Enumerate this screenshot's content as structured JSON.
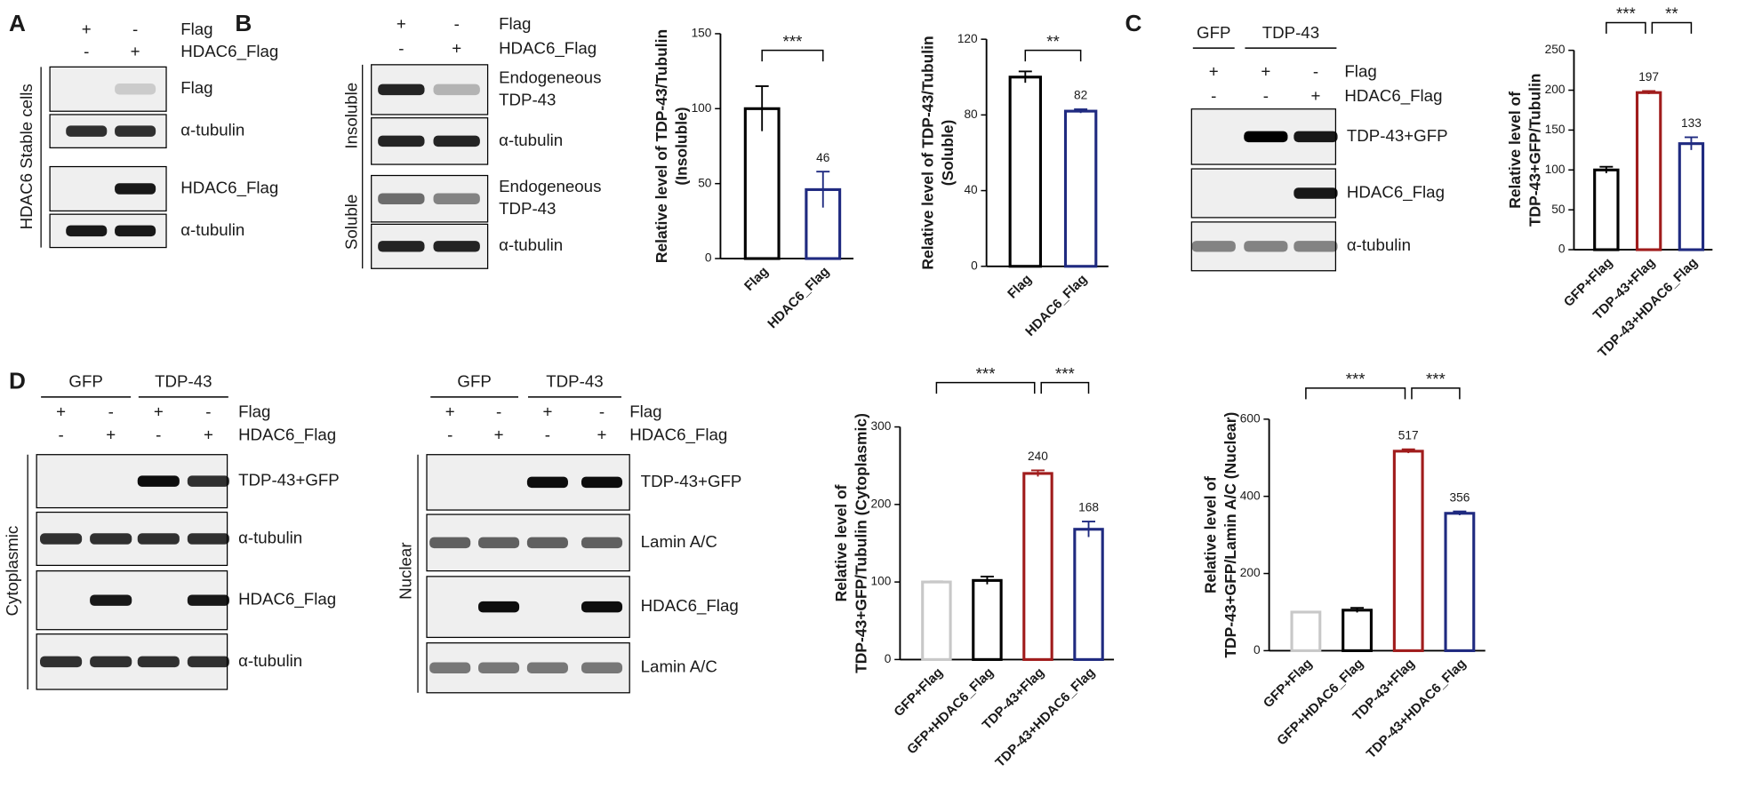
{
  "panel_letters": [
    "A",
    "B",
    "C",
    "D"
  ],
  "blots": [
    {
      "groups": [],
      "conditions": [
        {
          "label": "Flag",
          "signs": [
            "+",
            "-"
          ]
        },
        {
          "label": "HDAC6_Flag",
          "signs": [
            "-",
            "+"
          ]
        }
      ],
      "side_labels": [
        "HDAC6 Stable cells"
      ],
      "rows": [
        "Flag",
        "α-tubulin",
        "HDAC6_Flag",
        "α-tubulin"
      ]
    },
    {
      "groups": [],
      "conditions": [
        {
          "label": "Flag",
          "signs": [
            "+",
            "-"
          ]
        },
        {
          "label": "HDAC6_Flag",
          "signs": [
            "-",
            "+"
          ]
        }
      ],
      "side_labels": [
        "Insoluble",
        "Soluble"
      ],
      "rows": [
        [
          "Endogeneous",
          "TDP-43"
        ],
        "α-tubulin",
        [
          "Endogeneous",
          "TDP-43"
        ],
        "α-tubulin"
      ]
    },
    {
      "groups": [
        "GFP",
        "TDP-43"
      ],
      "conditions": [
        {
          "label": "Flag",
          "signs": [
            "+",
            "+",
            "-"
          ]
        },
        {
          "label": "HDAC6_Flag",
          "signs": [
            "-",
            "-",
            "+"
          ]
        }
      ],
      "side_labels": [],
      "rows": [
        "TDP-43+GFP",
        "HDAC6_Flag",
        "α-tubulin"
      ]
    },
    {
      "groups": [
        "GFP",
        "TDP-43"
      ],
      "conditions": [
        {
          "label": "Flag",
          "signs": [
            "+",
            "-",
            "+",
            "-"
          ]
        },
        {
          "label": "HDAC6_Flag",
          "signs": [
            "-",
            "+",
            "-",
            "+"
          ]
        }
      ],
      "side_labels": [
        "Cytoplasmic"
      ],
      "rows": [
        "TDP-43+GFP",
        "α-tubulin",
        "HDAC6_Flag",
        "α-tubulin"
      ]
    },
    {
      "groups": [
        "GFP",
        "TDP-43"
      ],
      "conditions": [
        {
          "label": "Flag",
          "signs": [
            "+",
            "-",
            "+",
            "-"
          ]
        },
        {
          "label": "HDAC6_Flag",
          "signs": [
            "-",
            "+",
            "-",
            "+"
          ]
        }
      ],
      "side_labels": [
        "Nuclear"
      ],
      "rows": [
        "TDP-43+GFP",
        "Lamin A/C",
        "HDAC6_Flag",
        "Lamin A/C"
      ]
    }
  ],
  "chart_data": [
    {
      "type": "bar",
      "ylabel": [
        "Relative level of TDP-43/Tubulin",
        "(Insoluble)"
      ],
      "categories": [
        "Flag",
        "HDAC6_Flag"
      ],
      "values": [
        100,
        46
      ],
      "errors": [
        15,
        12
      ],
      "colors": [
        "#000000",
        "#1f2a80"
      ],
      "labeled": [
        false,
        true
      ],
      "significance": [
        {
          "from": 0,
          "to": 1,
          "label": "***"
        }
      ],
      "ylim": [
        0,
        150
      ],
      "yticks": [
        0,
        50,
        100,
        150
      ]
    },
    {
      "type": "bar",
      "ylabel": [
        "Relative level of TDP-43/Tubulin",
        "(Soluble)"
      ],
      "categories": [
        "Flag",
        "HDAC6_Flag"
      ],
      "values": [
        100,
        82
      ],
      "errors": [
        3,
        1
      ],
      "colors": [
        "#000000",
        "#1f2a80"
      ],
      "labeled": [
        false,
        true
      ],
      "significance": [
        {
          "from": 0,
          "to": 1,
          "label": "**"
        }
      ],
      "ylim": [
        0,
        120
      ],
      "yticks": [
        0,
        40,
        80,
        120
      ]
    },
    {
      "type": "bar",
      "ylabel": [
        "Relative level of",
        "TDP-43+GFP/Tubulin"
      ],
      "categories": [
        "GFP+Flag",
        "TDP-43+Flag",
        "TDP-43+HDAC6_Flag"
      ],
      "values": [
        100,
        197,
        133
      ],
      "errors": [
        4,
        2,
        8
      ],
      "colors": [
        "#000000",
        "#a01c1c",
        "#1f2a80"
      ],
      "labeled": [
        false,
        true,
        true
      ],
      "significance": [
        {
          "from": 0,
          "to": 1,
          "label": "***"
        },
        {
          "from": 1,
          "to": 2,
          "label": "**"
        }
      ],
      "ylim": [
        0,
        250
      ],
      "yticks": [
        0,
        50,
        100,
        150,
        200,
        250
      ]
    },
    {
      "type": "bar",
      "ylabel": [
        "Relative level of",
        "TDP-43+GFP/Tubulin (Cytoplasmic)"
      ],
      "categories": [
        "GFP+Flag",
        "GFP+HDAC6_Flag",
        "TDP-43+Flag",
        "TDP-43+HDAC6_Flag"
      ],
      "values": [
        100,
        102,
        240,
        168
      ],
      "errors": [
        1,
        5,
        4,
        10
      ],
      "colors": [
        "#c8c8c8",
        "#000000",
        "#a01c1c",
        "#1f2a80"
      ],
      "labeled": [
        false,
        false,
        true,
        true
      ],
      "significance": [
        {
          "from": 0,
          "to": 2,
          "label": "***"
        },
        {
          "from": 2,
          "to": 3,
          "label": "***"
        }
      ],
      "ylim": [
        0,
        300
      ],
      "yticks": [
        0,
        100,
        200,
        300
      ]
    },
    {
      "type": "bar",
      "ylabel": [
        "Relative level of",
        "TDP-43+GFP/Lamin A/C (Nuclear)"
      ],
      "categories": [
        "GFP+Flag",
        "GFP+HDAC6_Flag",
        "TDP-43+Flag",
        "TDP-43+HDAC6_Flag"
      ],
      "values": [
        100,
        105,
        517,
        356
      ],
      "errors": [
        1,
        6,
        5,
        5
      ],
      "colors": [
        "#c8c8c8",
        "#000000",
        "#a01c1c",
        "#1f2a80"
      ],
      "labeled": [
        false,
        false,
        true,
        true
      ],
      "significance": [
        {
          "from": 0,
          "to": 2,
          "label": "***"
        },
        {
          "from": 2,
          "to": 3,
          "label": "***"
        }
      ],
      "ylim": [
        0,
        600
      ],
      "yticks": [
        0,
        200,
        400,
        600
      ]
    }
  ]
}
